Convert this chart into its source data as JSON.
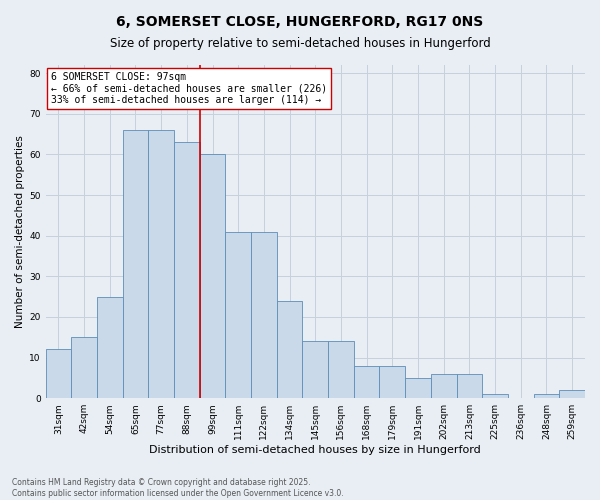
{
  "title": "6, SOMERSET CLOSE, HUNGERFORD, RG17 0NS",
  "subtitle": "Size of property relative to semi-detached houses in Hungerford",
  "xlabel": "Distribution of semi-detached houses by size in Hungerford",
  "ylabel": "Number of semi-detached properties",
  "categories": [
    "31sqm",
    "42sqm",
    "54sqm",
    "65sqm",
    "77sqm",
    "88sqm",
    "99sqm",
    "111sqm",
    "122sqm",
    "134sqm",
    "145sqm",
    "156sqm",
    "168sqm",
    "179sqm",
    "191sqm",
    "202sqm",
    "213sqm",
    "225sqm",
    "236sqm",
    "248sqm",
    "259sqm"
  ],
  "values": [
    12,
    15,
    25,
    66,
    66,
    63,
    60,
    41,
    41,
    24,
    14,
    14,
    8,
    8,
    5,
    6,
    6,
    1,
    0,
    1,
    2
  ],
  "bar_color": "#c9d9ea",
  "bar_edge_color": "#5b8db8",
  "grid_color": "#c8d0db",
  "background_color": "#e8eef4",
  "annotation_line1": "6 SOMERSET CLOSE: 97sqm",
  "annotation_line2": "← 66% of semi-detached houses are smaller (226)",
  "annotation_line3": "33% of semi-detached houses are larger (114) →",
  "vline_color": "#cc0000",
  "vline_x": 5.5,
  "annotation_fontsize": 7,
  "title_fontsize": 10,
  "subtitle_fontsize": 8.5,
  "xlabel_fontsize": 8,
  "ylabel_fontsize": 7.5,
  "tick_fontsize": 6.5,
  "footer_text": "Contains HM Land Registry data © Crown copyright and database right 2025.\nContains public sector information licensed under the Open Government Licence v3.0.",
  "ylim": [
    0,
    82
  ],
  "yticks": [
    0,
    10,
    20,
    30,
    40,
    50,
    60,
    70,
    80
  ]
}
